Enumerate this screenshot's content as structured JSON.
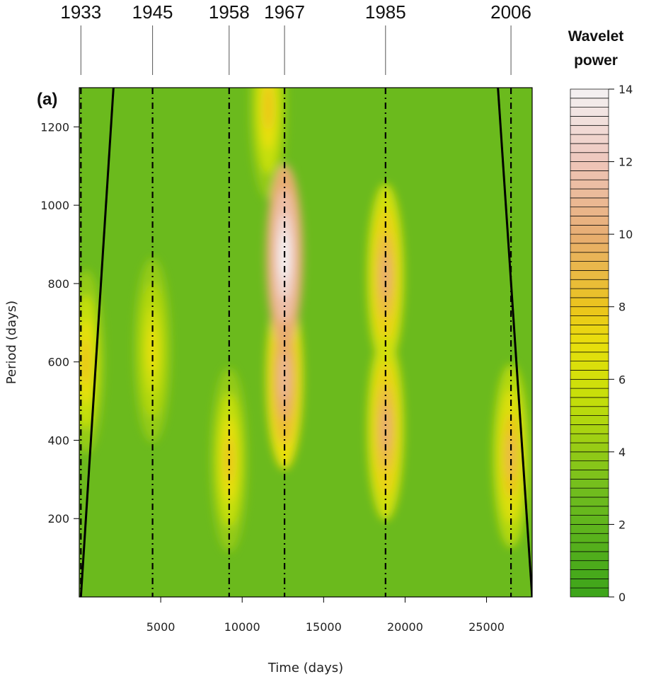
{
  "chart_data": {
    "type": "heatmap",
    "title": "",
    "panel_label": "(a)",
    "xlabel": "Time (days)",
    "ylabel": "Period (days)",
    "xlim": [
      0,
      27800
    ],
    "ylim": [
      0,
      1300
    ],
    "x_ticks": [
      5000,
      10000,
      15000,
      20000,
      25000
    ],
    "y_ticks": [
      200,
      400,
      600,
      800,
      1000,
      1200
    ],
    "grid": false,
    "event_markers": [
      {
        "label": "1933",
        "x": 100
      },
      {
        "label": "1945",
        "x": 4500
      },
      {
        "label": "1958",
        "x": 9200
      },
      {
        "label": "1967",
        "x": 12600
      },
      {
        "label": "1985",
        "x": 18800
      },
      {
        "label": "2006",
        "x": 26500
      }
    ],
    "cone_of_influence": {
      "left": [
        [
          100,
          0
        ],
        [
          2100,
          1300
        ]
      ],
      "right": [
        [
          25700,
          1300
        ],
        [
          27800,
          0
        ]
      ]
    },
    "power_features": [
      {
        "x": 12600,
        "period": 870,
        "power": 14
      },
      {
        "x": 12600,
        "period": 560,
        "power": 11
      },
      {
        "x": 18800,
        "period": 820,
        "power": 10
      },
      {
        "x": 18800,
        "period": 430,
        "power": 10
      },
      {
        "x": 26500,
        "period": 360,
        "power": 9
      },
      {
        "x": 11600,
        "period": 1250,
        "power": 8
      },
      {
        "x": 9200,
        "period": 350,
        "power": 8
      },
      {
        "x": 4500,
        "period": 630,
        "power": 7
      },
      {
        "x": 400,
        "period": 600,
        "power": 8
      }
    ],
    "colorbar": {
      "title": "Wavelet power",
      "range": [
        0,
        14
      ],
      "ticks": [
        0,
        2,
        4,
        6,
        8,
        10,
        12,
        14
      ],
      "colors": [
        {
          "v": 0,
          "c": "#3ca41a"
        },
        {
          "v": 3,
          "c": "#72bd1e"
        },
        {
          "v": 5.5,
          "c": "#c6df0a"
        },
        {
          "v": 7,
          "c": "#e9df0c"
        },
        {
          "v": 8,
          "c": "#ebc41c"
        },
        {
          "v": 10,
          "c": "#e8ad72"
        },
        {
          "v": 12,
          "c": "#eec6bb"
        },
        {
          "v": 14,
          "c": "#f4f2f3"
        }
      ]
    }
  }
}
